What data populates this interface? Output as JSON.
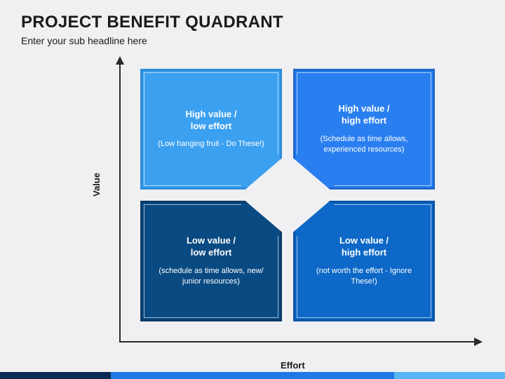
{
  "header": {
    "title": "PROJECT BENEFIT QUADRANT",
    "subtitle": "Enter your sub headline here"
  },
  "axes": {
    "y_label": "Value",
    "x_label": "Effort",
    "axis_color": "#2a2a2a"
  },
  "quadrants": {
    "tl": {
      "title_line1": "High value /",
      "title_line2": "low effort",
      "sub": "(Low hanging fruit - Do These!)",
      "bg_color": "#3ca0f0",
      "border_color": "#2d8cdb"
    },
    "tr": {
      "title_line1": "High value /",
      "title_line2": "high effort",
      "sub": "(Schedule as time allows, experienced resources)",
      "bg_color": "#2a7ff0",
      "border_color": "#1e68d0"
    },
    "bl": {
      "title_line1": "Low value /",
      "title_line2": "low effort",
      "sub": "(schedule as time allows, new/ junior resources)",
      "bg_color": "#0a4a82",
      "border_color": "#073a68"
    },
    "br": {
      "title_line1": "Low value /",
      "title_line2": "high effort",
      "sub": "(not worth the effort - Ignore These!)",
      "bg_color": "#0d68c7",
      "border_color": "#0a55a8"
    }
  },
  "footer_colors": {
    "seg1": "#0a2a52",
    "seg2": "#1e78e6",
    "seg3": "#58b4f5"
  },
  "background_color": "#f0f0f2",
  "type": "quadrant"
}
